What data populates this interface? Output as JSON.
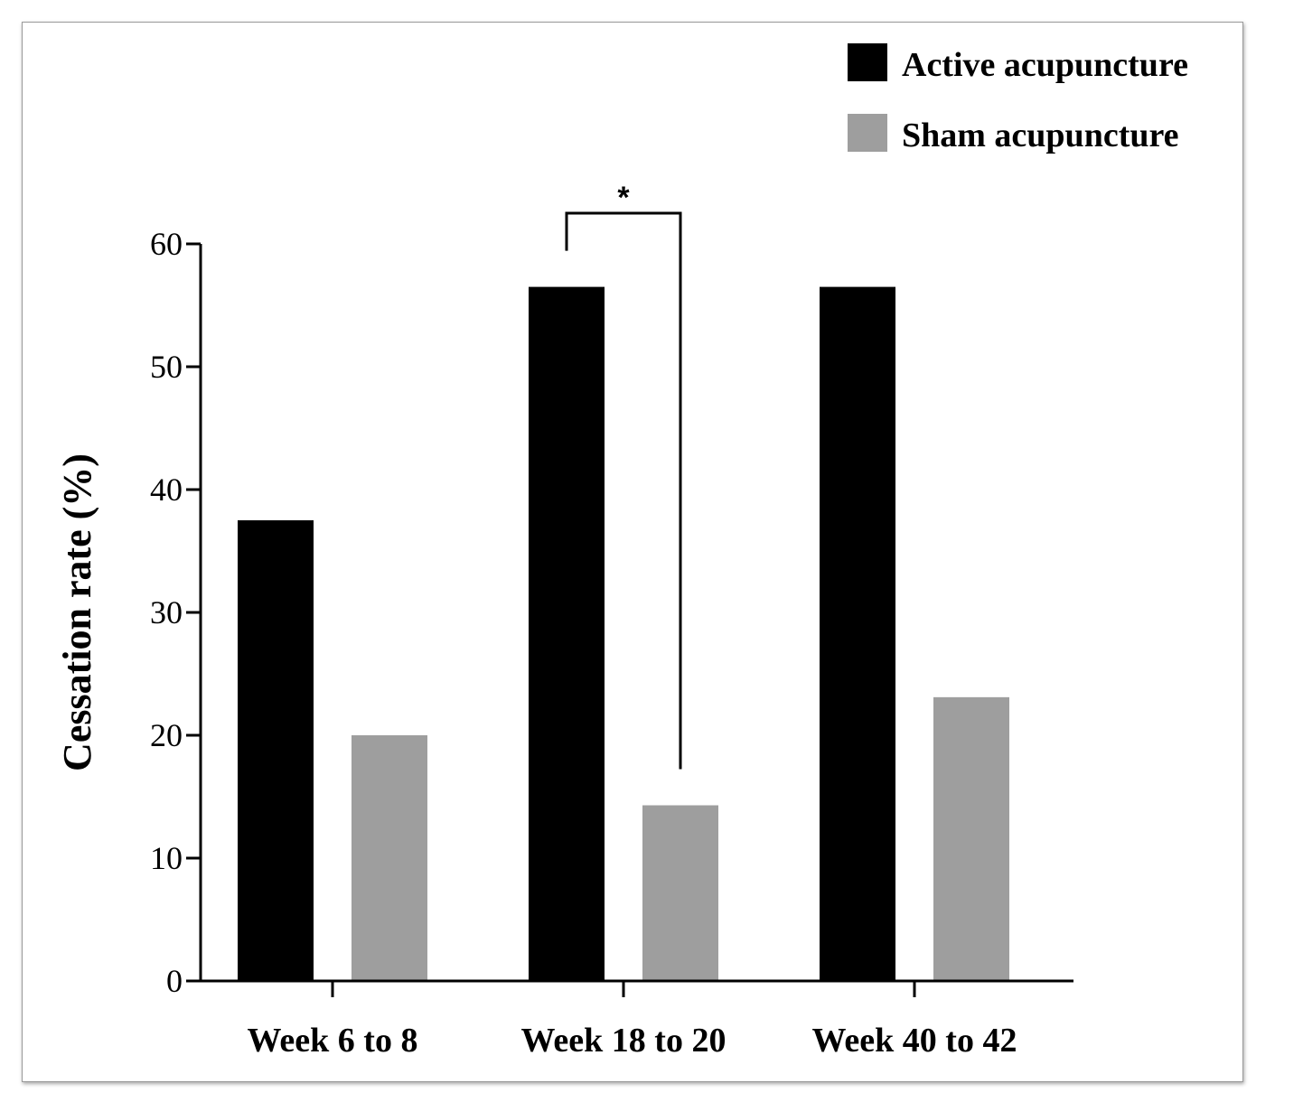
{
  "chart_data": {
    "type": "bar",
    "categories": [
      "Week 6 to 8",
      "Week 18 to 20",
      "Week 40 to 42"
    ],
    "series": [
      {
        "name": "Active acupuncture",
        "color": "#000000",
        "values": [
          37.5,
          56.5,
          56.5
        ]
      },
      {
        "name": "Sham acupuncture",
        "color": "#9e9e9e",
        "values": [
          20.0,
          14.3,
          23.1
        ]
      }
    ],
    "title": "",
    "xlabel": "",
    "ylabel": "Cessation rate (%)",
    "ylim": [
      0,
      60
    ],
    "yticks": [
      "0",
      "10",
      "20",
      "30",
      "40",
      "50",
      "60"
    ],
    "grid": false,
    "legend_position": "top-right",
    "annotations": [
      {
        "text": "*",
        "category": "Week 18 to 20",
        "type": "significance-bracket"
      }
    ]
  }
}
